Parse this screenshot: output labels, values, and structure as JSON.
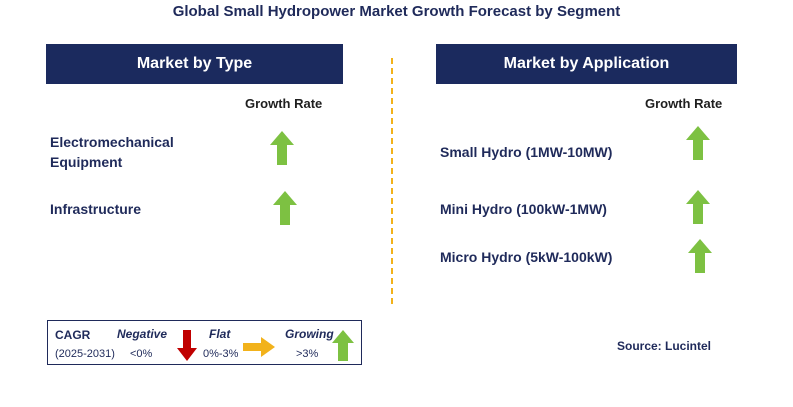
{
  "title": "Global Small Hydropower Market Growth Forecast by Segment",
  "left_panel": {
    "header": "Market by Type",
    "growth_rate_label": "Growth Rate",
    "items": [
      {
        "label_line1": "Electromechanical",
        "label_line2": "Equipment",
        "trend": "growing"
      },
      {
        "label_line1": "Infrastructure",
        "label_line2": "",
        "trend": "growing"
      }
    ]
  },
  "right_panel": {
    "header": "Market by Application",
    "growth_rate_label": "Growth Rate",
    "items": [
      {
        "label": "Small Hydro (1MW-10MW)",
        "trend": "growing"
      },
      {
        "label": "Mini Hydro (100kW-1MW)",
        "trend": "growing"
      },
      {
        "label": "Micro Hydro (5kW-100kW)",
        "trend": "growing"
      }
    ]
  },
  "legend": {
    "cagr_label": "CAGR",
    "period": "(2025-2031)",
    "negative_label": "Negative",
    "negative_range": "<0%",
    "flat_label": "Flat",
    "flat_range": "0%-3%",
    "growing_label": "Growing",
    "growing_range": ">3%"
  },
  "source": "Source: Lucintel",
  "colors": {
    "header_bg": "#1b2a5e",
    "growing": "#7dc142",
    "flat": "#f2b21b",
    "negative": "#c00000",
    "divider": "#f2b21b"
  },
  "icons": {
    "growing": "up-arrow-icon",
    "flat": "right-arrow-icon",
    "negative": "down-arrow-icon"
  }
}
